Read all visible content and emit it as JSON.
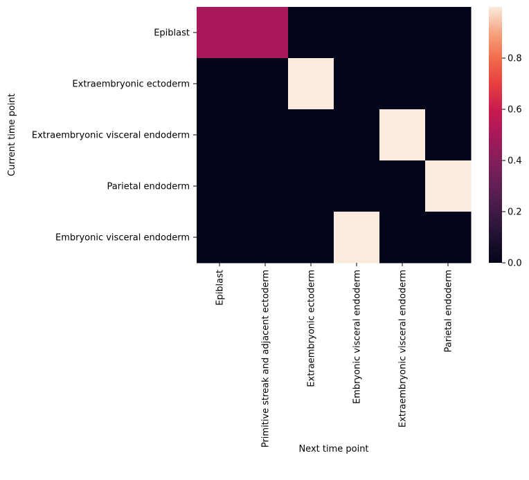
{
  "chart_data": {
    "type": "heatmap",
    "title": "",
    "xlabel": "Next time point",
    "ylabel": "Current time point",
    "x_categories": [
      "Epiblast",
      "Primitive streak and adjacent ectoderm",
      "Extraembryonic ectoderm",
      "Embryonic visceral endoderm",
      "Extraembryonic visceral endoderm",
      "Parietal endoderm"
    ],
    "y_categories": [
      "Epiblast",
      "Extraembryonic ectoderm",
      "Extraembryonic visceral endoderm",
      "Parietal endoderm",
      "Embryonic visceral endoderm"
    ],
    "values": [
      [
        0.5,
        0.5,
        0.0,
        0.0,
        0.0,
        0.0
      ],
      [
        0.0,
        0.0,
        1.0,
        0.0,
        0.0,
        0.0
      ],
      [
        0.0,
        0.0,
        0.0,
        0.0,
        1.0,
        0.0
      ],
      [
        0.0,
        0.0,
        0.0,
        0.0,
        0.0,
        1.0
      ],
      [
        0.0,
        0.0,
        0.0,
        1.0,
        0.0,
        0.0
      ]
    ],
    "colorbar": {
      "colormap": "rocket",
      "vmin": 0.0,
      "vmax": 1.0,
      "ticks": [
        0.0,
        0.2,
        0.4,
        0.6,
        0.8
      ],
      "tick_labels": [
        "0.0",
        "0.2",
        "0.4",
        "0.6",
        "0.8"
      ]
    }
  }
}
